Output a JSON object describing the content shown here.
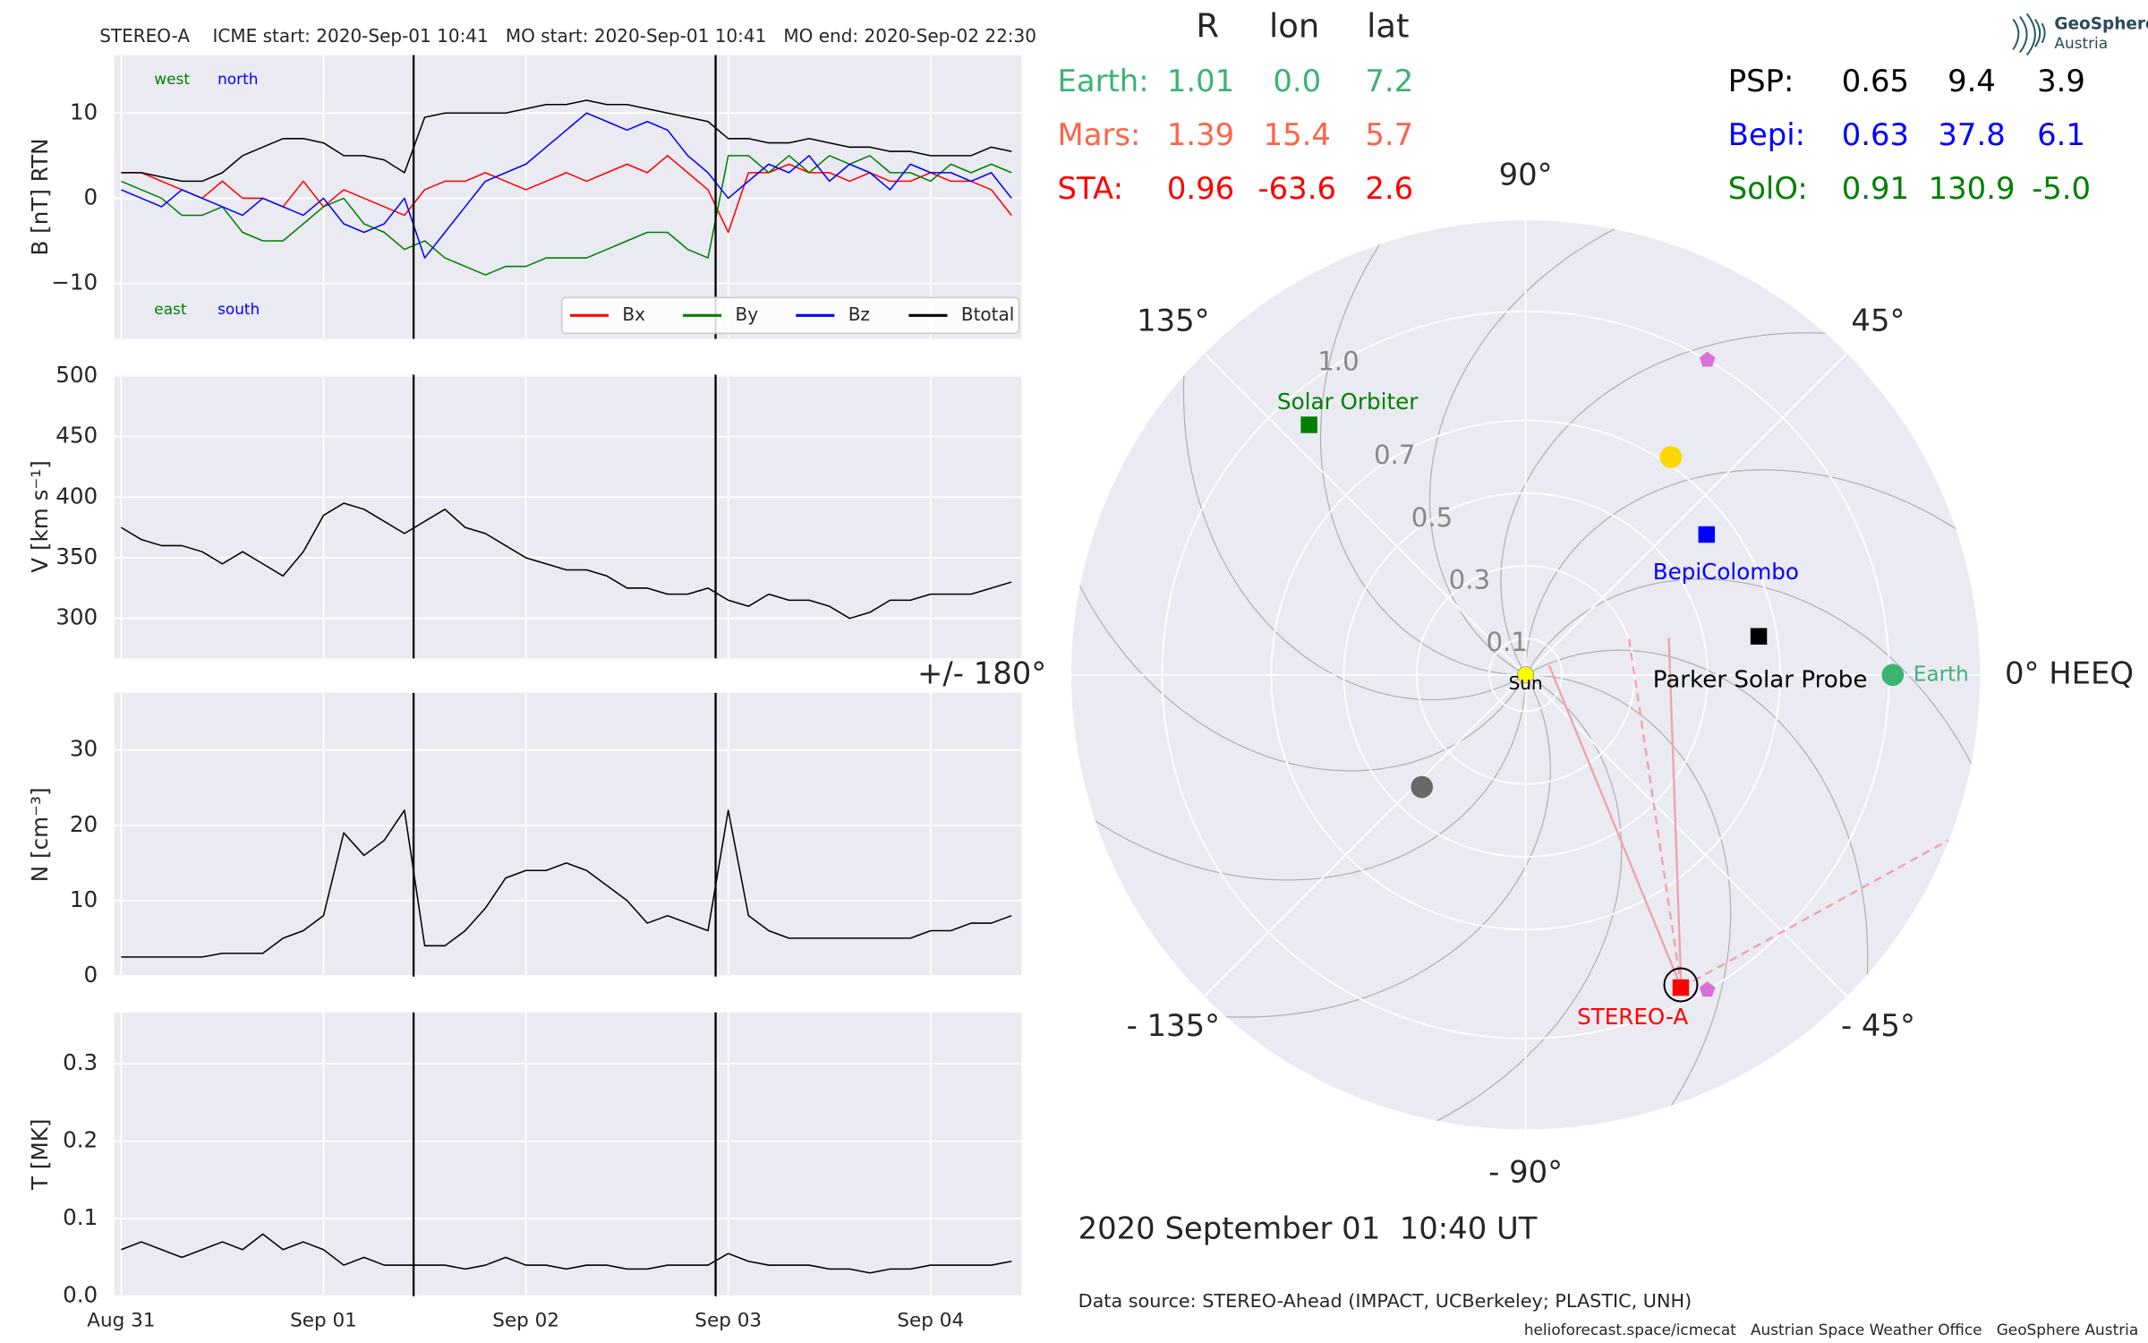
{
  "chart_data": [
    {
      "type": "line",
      "title": "STEREO-A    ICME start: 2020-Sep-01 10:41   MO start: 2020-Sep-01 10:41   MO end: 2020-Sep-02 22:30",
      "ylabel": "B [nT] RTN",
      "x": [
        0,
        0.1,
        0.2,
        0.3,
        0.4,
        0.5,
        0.6,
        0.7,
        0.8,
        0.9,
        1,
        1.1,
        1.2,
        1.3,
        1.4,
        1.5,
        1.6,
        1.7,
        1.8,
        1.9,
        2,
        2.1,
        2.2,
        2.3,
        2.4,
        2.5,
        2.6,
        2.7,
        2.8,
        2.9,
        3,
        3.1,
        3.2,
        3.3,
        3.4,
        3.5,
        3.6,
        3.7,
        3.8,
        3.9,
        4,
        4.1,
        4.2,
        4.3,
        4.4
      ],
      "series": [
        {
          "name": "Bx",
          "color": "#ff0000",
          "values": [
            3,
            3,
            2,
            1,
            0,
            2,
            0,
            0,
            -1,
            2,
            -1,
            1,
            0,
            -1,
            -2,
            1,
            2,
            2,
            3,
            2,
            1,
            2,
            3,
            2,
            3,
            4,
            3,
            5,
            3,
            1,
            -4,
            3,
            3,
            4,
            3,
            3,
            2,
            3,
            2,
            2,
            3,
            2,
            2,
            1,
            -2
          ]
        },
        {
          "name": "By",
          "color": "#008000",
          "values": [
            2,
            1,
            0,
            -2,
            -2,
            -1,
            -4,
            -5,
            -5,
            -3,
            -1,
            0,
            -3,
            -4,
            -6,
            -5,
            -7,
            -8,
            -9,
            -8,
            -8,
            -7,
            -7,
            -7,
            -6,
            -5,
            -4,
            -4,
            -6,
            -7,
            5,
            5,
            3,
            5,
            3,
            5,
            4,
            5,
            3,
            3,
            2,
            4,
            3,
            4,
            3
          ]
        },
        {
          "name": "Bz",
          "color": "#0000ff",
          "values": [
            1,
            0,
            -1,
            1,
            0,
            -1,
            -2,
            0,
            -1,
            -2,
            0,
            -3,
            -4,
            -3,
            0,
            -7,
            -4,
            -1,
            2,
            3,
            4,
            6,
            8,
            10,
            9,
            8,
            9,
            8,
            5,
            3,
            0,
            2,
            4,
            3,
            5,
            2,
            4,
            3,
            1,
            4,
            3,
            3,
            2,
            3,
            0
          ]
        },
        {
          "name": "Btotal",
          "color": "#000000",
          "values": [
            3,
            3,
            2.5,
            2,
            2,
            3,
            5,
            6,
            7,
            7,
            6.5,
            5,
            5,
            4.5,
            3,
            9.5,
            10,
            10,
            10,
            10,
            10.5,
            11,
            11,
            11.5,
            11,
            11,
            10.5,
            10,
            9.5,
            9,
            7,
            7,
            6.5,
            6.5,
            7,
            6.5,
            6,
            6,
            5.5,
            5.5,
            5,
            5,
            5,
            6,
            5.5
          ]
        }
      ],
      "annotations": [
        {
          "text": "west",
          "color": "#008000"
        },
        {
          "text": "north",
          "color": "#0000ff"
        },
        {
          "text": "east",
          "color": "#008000"
        },
        {
          "text": "south",
          "color": "#0000ff"
        }
      ],
      "vlines": [
        1.445,
        2.9375
      ],
      "xlim": [
        -0.034,
        4.45
      ],
      "xticks": [
        0,
        1,
        2,
        3,
        4
      ],
      "ylim": [
        -16.5,
        16.8
      ],
      "yticks": [
        {
          "value": -10,
          "label": "−10"
        },
        0,
        10
      ],
      "grid": true,
      "legend": "lower right"
    },
    {
      "type": "line",
      "ylabel": "V [km s⁻¹]",
      "x": [
        0,
        0.1,
        0.2,
        0.3,
        0.4,
        0.5,
        0.6,
        0.7,
        0.8,
        0.9,
        1,
        1.1,
        1.2,
        1.3,
        1.4,
        1.5,
        1.6,
        1.7,
        1.8,
        1.9,
        2,
        2.1,
        2.2,
        2.3,
        2.4,
        2.5,
        2.6,
        2.7,
        2.8,
        2.9,
        3,
        3.1,
        3.2,
        3.3,
        3.4,
        3.5,
        3.6,
        3.7,
        3.8,
        3.9,
        4,
        4.1,
        4.2,
        4.3,
        4.4
      ],
      "values": [
        375,
        365,
        360,
        360,
        355,
        345,
        355,
        345,
        335,
        355,
        385,
        395,
        390,
        380,
        370,
        380,
        390,
        375,
        370,
        360,
        350,
        345,
        340,
        340,
        335,
        325,
        325,
        320,
        320,
        325,
        315,
        310,
        320,
        315,
        315,
        310,
        300,
        305,
        315,
        315,
        320,
        320,
        320,
        325,
        330
      ],
      "color": "#000000",
      "vlines": [
        1.445,
        2.9375
      ],
      "xlim": [
        -0.034,
        4.45
      ],
      "xticks": [
        0,
        1,
        2,
        3,
        4
      ],
      "ylim": [
        267,
        501
      ],
      "yticks": [
        300,
        350,
        400,
        450,
        500
      ],
      "grid": true
    },
    {
      "type": "line",
      "ylabel": "N [cm⁻³]",
      "x": [
        0,
        0.1,
        0.2,
        0.3,
        0.4,
        0.5,
        0.6,
        0.7,
        0.8,
        0.9,
        1,
        1.1,
        1.2,
        1.3,
        1.4,
        1.5,
        1.6,
        1.7,
        1.8,
        1.9,
        2,
        2.1,
        2.2,
        2.3,
        2.4,
        2.5,
        2.6,
        2.7,
        2.8,
        2.9,
        3,
        3.1,
        3.2,
        3.3,
        3.4,
        3.5,
        3.6,
        3.7,
        3.8,
        3.9,
        4,
        4.1,
        4.2,
        4.3,
        4.4
      ],
      "values": [
        2.5,
        2.5,
        2.5,
        2.5,
        2.5,
        3,
        3,
        3,
        5,
        6,
        8,
        19,
        16,
        18,
        22,
        4,
        4,
        6,
        9,
        13,
        14,
        14,
        15,
        14,
        12,
        10,
        7,
        8,
        7,
        6,
        22,
        8,
        6,
        5,
        5,
        5,
        5,
        5,
        5,
        5,
        6,
        6,
        7,
        7,
        8
      ],
      "color": "#000000",
      "vlines": [
        1.445,
        2.9375
      ],
      "xlim": [
        -0.034,
        4.45
      ],
      "xticks": [
        0,
        1,
        2,
        3,
        4
      ],
      "ylim": [
        -0.1,
        37.6
      ],
      "yticks": [
        0,
        10,
        20,
        30
      ],
      "grid": true
    },
    {
      "type": "line",
      "ylabel": "T [MK]",
      "x": [
        0,
        0.1,
        0.2,
        0.3,
        0.4,
        0.5,
        0.6,
        0.7,
        0.8,
        0.9,
        1,
        1.1,
        1.2,
        1.3,
        1.4,
        1.5,
        1.6,
        1.7,
        1.8,
        1.9,
        2,
        2.1,
        2.2,
        2.3,
        2.4,
        2.5,
        2.6,
        2.7,
        2.8,
        2.9,
        3,
        3.1,
        3.2,
        3.3,
        3.4,
        3.5,
        3.6,
        3.7,
        3.8,
        3.9,
        4,
        4.1,
        4.2,
        4.3,
        4.4
      ],
      "values": [
        0.06,
        0.07,
        0.06,
        0.05,
        0.06,
        0.07,
        0.06,
        0.08,
        0.06,
        0.07,
        0.06,
        0.04,
        0.05,
        0.04,
        0.04,
        0.04,
        0.04,
        0.035,
        0.04,
        0.05,
        0.04,
        0.04,
        0.035,
        0.04,
        0.04,
        0.035,
        0.035,
        0.04,
        0.04,
        0.04,
        0.055,
        0.045,
        0.04,
        0.04,
        0.04,
        0.035,
        0.035,
        0.03,
        0.035,
        0.035,
        0.04,
        0.04,
        0.04,
        0.04,
        0.045
      ],
      "color": "#000000",
      "vlines": [
        1.445,
        2.9375
      ],
      "xlim": [
        -0.034,
        4.45
      ],
      "xticks": [
        {
          "value": 0,
          "label": "Aug 31"
        },
        {
          "value": 1,
          "label": "Sep 01"
        },
        {
          "value": 2,
          "label": "Sep 02"
        },
        {
          "value": 3,
          "label": "Sep 03"
        },
        {
          "value": 4,
          "label": "Sep 04"
        }
      ],
      "ylim": [
        0,
        0.366
      ],
      "yticks": [
        {
          "value": 0,
          "label": "0.0"
        },
        0.1,
        0.2,
        0.3
      ],
      "grid": true
    },
    {
      "type": "polar",
      "rlim": [
        0,
        1.25
      ],
      "rticks": [
        0.1,
        0.3,
        0.5,
        0.7,
        {
          "value": 1,
          "label": "1.0"
        }
      ],
      "thetaticks": [
        {
          "value": 90,
          "label": "90°"
        },
        {
          "value": 45,
          "label": "45°"
        },
        {
          "value": 0,
          "label": "0° HEEQ"
        },
        {
          "value": -45,
          "label": "- 45°"
        },
        {
          "value": -90,
          "label": "- 90°"
        },
        {
          "value": -135,
          "label": "- 135°"
        },
        {
          "value": 180,
          "label": "+/- 180°"
        },
        {
          "value": 135,
          "label": "135°"
        }
      ],
      "bodies": [
        {
          "name": "Earth",
          "r": 1.01,
          "lon": 0,
          "color": "#3cb371",
          "marker": "circle"
        },
        {
          "name": "STEREO-A",
          "r": 0.96,
          "lon": -63.6,
          "color": "#ff0000",
          "marker": "square"
        },
        {
          "name": "Parker Solar Probe",
          "r": 0.65,
          "lon": 9.4,
          "color": "#000000",
          "marker": "square"
        },
        {
          "name": "BepiColombo",
          "r": 0.63,
          "lon": 37.8,
          "color": "#0000ff",
          "marker": "square"
        },
        {
          "name": "Solar Orbiter",
          "r": 0.91,
          "lon": 130.9,
          "color": "#008000",
          "marker": "square"
        },
        {
          "name": "Sun",
          "r": 0,
          "lon": 0,
          "color": "#ffff00",
          "marker": "circle"
        }
      ],
      "others": [
        {
          "r": 0.72,
          "lon": 56.3,
          "color": "#ffd700",
          "marker": "circle"
        },
        {
          "r": 0.42,
          "lon": -132.8,
          "color": "#696969",
          "marker": "circle"
        },
        {
          "r": 1.0,
          "lon": 60,
          "color": "#da70d6",
          "marker": "pentagon"
        },
        {
          "r": 1.0,
          "lon": -60,
          "color": "#da70d6",
          "marker": "pentagon"
        }
      ],
      "table": {
        "columns": [
          "R",
          "lon",
          "lat"
        ],
        "rows": [
          {
            "cells": [
              "Earth:",
              "1.01",
              "0.0",
              "7.2"
            ],
            "color": "#3cb371"
          },
          {
            "cells": [
              "Mars:",
              "1.39",
              "15.4",
              "5.7"
            ],
            "color": "#ff6347"
          },
          {
            "cells": [
              "STA:",
              "0.96",
              "-63.6",
              "2.6"
            ],
            "color": "#ff0000"
          },
          {
            "cells": [
              "PSP:",
              "0.65",
              "9.4",
              "3.9"
            ],
            "color": "#000000"
          },
          {
            "cells": [
              "Bepi:",
              "0.63",
              "37.8",
              "6.1"
            ],
            "color": "#0000ff"
          },
          {
            "cells": [
              "SolO:",
              "0.91",
              "130.9",
              "-5.0"
            ],
            "color": "#008000"
          }
        ]
      },
      "date": "2020 September 01  10:40 UT",
      "source": "Data source: STEREO-Ahead (IMPACT, UCBerkeley; PLASTIC, UNH)"
    }
  ],
  "footer": "helioforecast.space/icmecat   Austrian Space Weather Office   GeoSphere Austria",
  "logo": [
    "GeoSphere",
    "Austria"
  ]
}
